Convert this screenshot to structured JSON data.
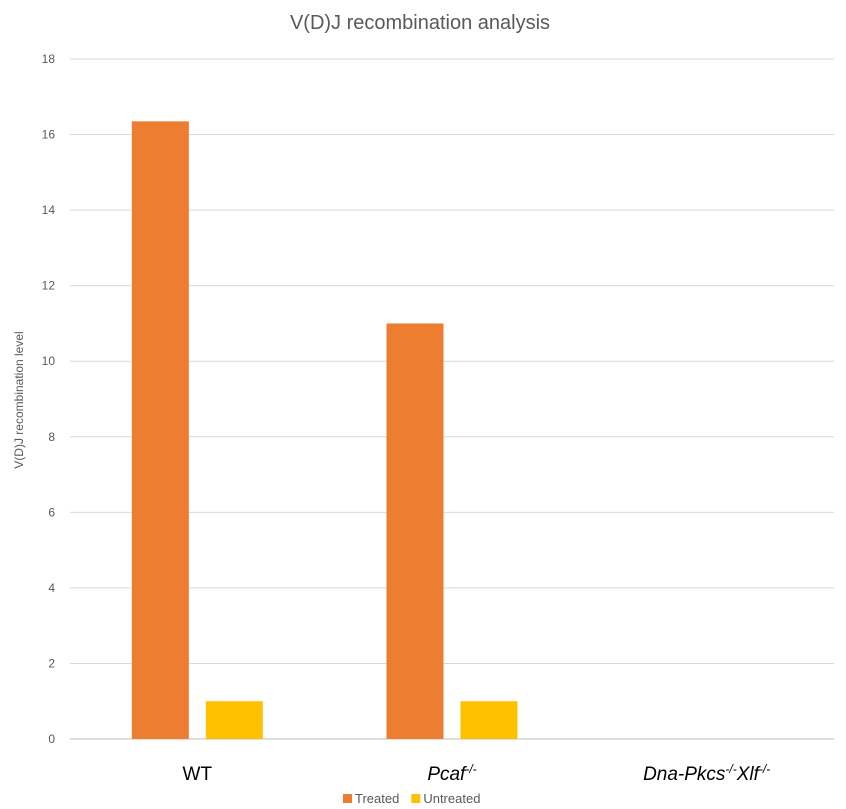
{
  "chart_data": {
    "type": "bar",
    "title": "V(D)J recombination analysis",
    "xlabel": "",
    "ylabel": "V(D)J recombination level",
    "ylim": [
      0,
      18
    ],
    "yticks": [
      0,
      2,
      4,
      6,
      8,
      10,
      12,
      14,
      16,
      18
    ],
    "grid": true,
    "legend_position": "bottom",
    "categories": [
      {
        "base": "WT",
        "italic": false,
        "parts": [
          {
            "text": "WT",
            "sup": false
          }
        ]
      },
      {
        "base": "Pcaf",
        "italic": true,
        "parts": [
          {
            "text": "Pcaf",
            "sup": false
          },
          {
            "text": "-/-",
            "sup": true
          }
        ]
      },
      {
        "base": "Dna-Pkcs Xlf",
        "italic": true,
        "parts": [
          {
            "text": "Dna-Pkcs",
            "sup": false
          },
          {
            "text": "-/-",
            "sup": true
          },
          {
            "text": "Xlf",
            "sup": false
          },
          {
            "text": "-/-",
            "sup": true
          }
        ]
      }
    ],
    "series": [
      {
        "name": "Treated",
        "color": "#ED7D31",
        "values": [
          16.35,
          11.0,
          0
        ]
      },
      {
        "name": "Untreated",
        "color": "#FFC000",
        "values": [
          1.0,
          1.0,
          0
        ]
      }
    ]
  }
}
